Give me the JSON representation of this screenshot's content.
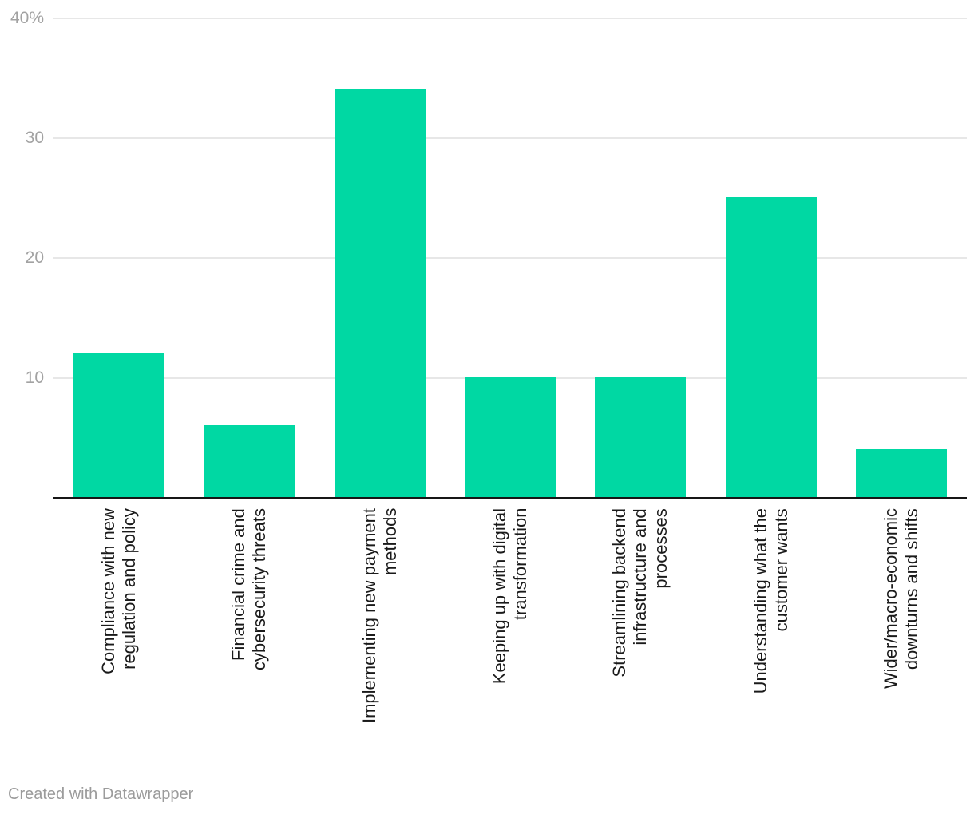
{
  "chart_data": {
    "type": "bar",
    "categories": [
      "Compliance with new\nregulation and policy",
      "Financial crime and\ncybersecurity threats",
      "Implementing new payment\nmethods",
      "Keeping up with digital\ntransformation",
      "Streamlining backend\ninfrastructure and\nprocesses",
      "Understanding what the\ncustomer wants",
      "Wider/macro-economic\ndownturns and shifts"
    ],
    "values": [
      12,
      6,
      34,
      10,
      10,
      25,
      4
    ],
    "title": "",
    "xlabel": "",
    "ylabel": "",
    "ylim": [
      0,
      40
    ],
    "yticks": [
      {
        "value": 40,
        "label": "40%"
      },
      {
        "value": 30,
        "label": "30"
      },
      {
        "value": 20,
        "label": "20"
      },
      {
        "value": 10,
        "label": "10"
      }
    ],
    "unit": "%",
    "grid": true,
    "legend_position": "none",
    "bar_color": "#00d8a3"
  },
  "colors": {
    "bar": "#00d8a3",
    "gridline": "#e7e7e7",
    "axis_line": "#161616",
    "tick_text": "#a2a2a2",
    "label_text": "#1a1a1a",
    "credit_text": "#9b9b9b",
    "background": "#ffffff"
  },
  "footer": {
    "credit": "Created with Datawrapper"
  }
}
